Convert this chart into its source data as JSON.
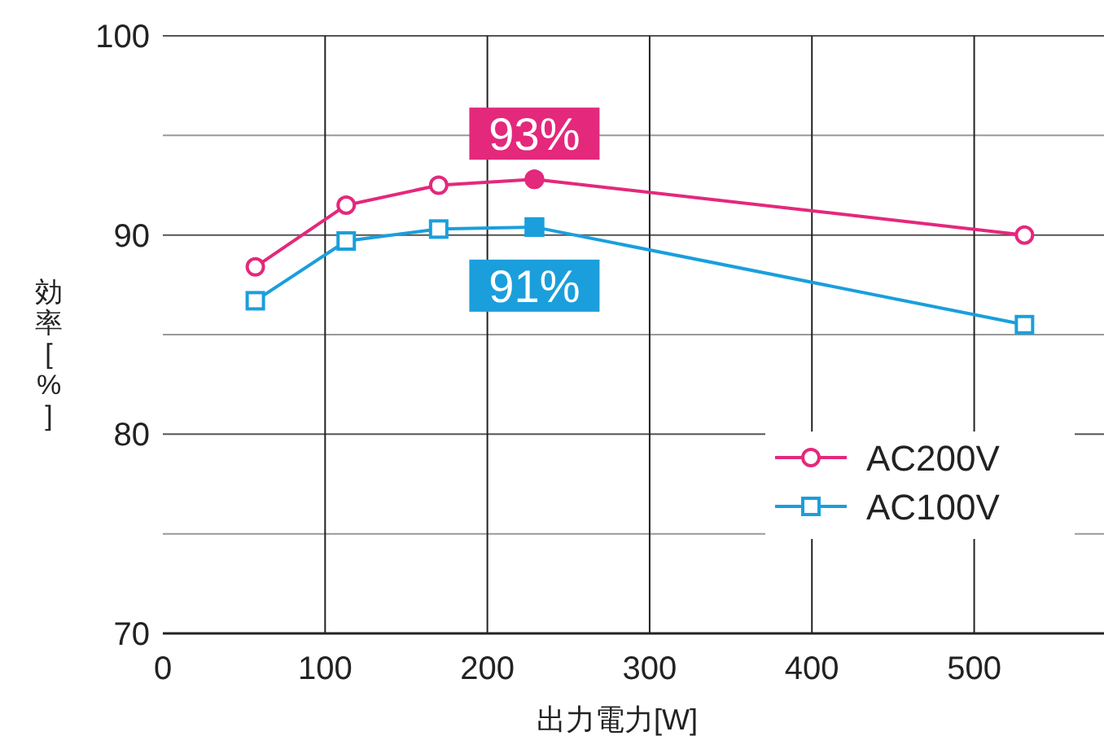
{
  "chart_data": {
    "type": "line",
    "xlabel": "出力電力[W]",
    "ylabel": "効率[%]",
    "xlim": [
      0,
      580
    ],
    "xticks": [
      0,
      100,
      200,
      300,
      400,
      500
    ],
    "ylim": [
      70,
      100
    ],
    "yticks": [
      70,
      {
        "value": 75,
        "label": null
      },
      80,
      {
        "value": 85,
        "label": null
      },
      90,
      {
        "value": 95,
        "label": null
      },
      100
    ],
    "grid": true,
    "legend": "bottom right",
    "marker": "circle",
    "line_style": "solid",
    "series": [
      {
        "name": "AC200V",
        "color": "#e4287c",
        "x": [
          57,
          113,
          170,
          229,
          531
        ],
        "values": [
          88.4,
          91.5,
          92.5,
          92.8,
          90.0
        ]
      },
      {
        "name": "AC100V",
        "color": "#1a9fdc",
        "marker": "square",
        "x": [
          57,
          113,
          170,
          229,
          531
        ],
        "values": [
          86.7,
          89.7,
          90.3,
          90.4,
          85.5
        ]
      }
    ],
    "annotations": [
      {
        "text": "93%",
        "x": 229,
        "y": 92.8
      },
      {
        "text": "91%",
        "x": 229,
        "y": 90.4
      }
    ]
  }
}
